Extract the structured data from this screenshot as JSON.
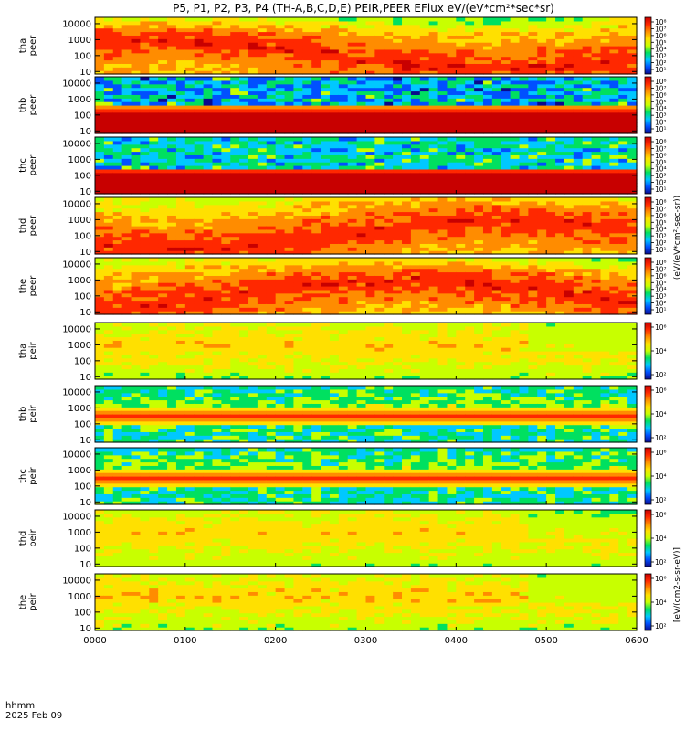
{
  "chart_data": {
    "type": "heatmap",
    "title": "P5, P1, P2, P3, P4 (TH-A,B,C,D,E) PEIR,PEER EFlux eV/(eV*cm²*sec*sr)",
    "xlabel_line1": "hhmm",
    "xlabel_line2": "2025 Feb 09",
    "x_ticks": [
      "0000",
      "0100",
      "0200",
      "0300",
      "0400",
      "0500",
      "0600"
    ],
    "xlim": [
      "00:00",
      "06:00"
    ],
    "y_scale": "log",
    "y_ticks": [
      "10",
      "100",
      "1000",
      "10000"
    ],
    "ylim_eV": [
      7,
      25000
    ],
    "colorbar_scale": "log",
    "colorbar_ticks_electron": [
      "10⁸",
      "10⁷",
      "10⁶",
      "10⁵",
      "10⁴",
      "10³",
      "10²",
      "10¹"
    ],
    "colorbar_ticks_ion": [
      "10⁶",
      "10⁴",
      "10²"
    ],
    "colorbar_units_top": "(eV/(eV*cm²-sec-sr))",
    "colorbar_units_bottom": "[eV/(cm2-s-sr-eV)]",
    "palette": [
      "#0a0a8c",
      "#0050ff",
      "#00c8ff",
      "#00e060",
      "#c8ff00",
      "#ffe000",
      "#ff8c00",
      "#ff2800",
      "#c80000"
    ],
    "panels": [
      {
        "label_line1": "tha",
        "label_line2": "peer",
        "species": "electron",
        "profile": "hot",
        "vary": 0.9
      },
      {
        "label_line1": "thb",
        "label_line2": "peer",
        "species": "electron",
        "profile": "bands",
        "vary": 0.2
      },
      {
        "label_line1": "thc",
        "label_line2": "peer",
        "species": "electron",
        "profile": "bands2",
        "vary": 0.2
      },
      {
        "label_line1": "thd",
        "label_line2": "peer",
        "species": "electron",
        "profile": "hot",
        "vary": 0.8
      },
      {
        "label_line1": "the",
        "label_line2": "peer",
        "species": "electron",
        "profile": "hot",
        "vary": 0.9
      },
      {
        "label_line1": "tha",
        "label_line2": "peir",
        "species": "ion",
        "profile": "ionwarm",
        "vary": 0.7
      },
      {
        "label_line1": "thb",
        "label_line2": "peir",
        "species": "ion",
        "profile": "ionbands",
        "vary": 0.2
      },
      {
        "label_line1": "thc",
        "label_line2": "peir",
        "species": "ion",
        "profile": "ionbands",
        "vary": 0.2
      },
      {
        "label_line1": "thd",
        "label_line2": "peir",
        "species": "ion",
        "profile": "ionwarm",
        "vary": 0.6
      },
      {
        "label_line1": "the",
        "label_line2": "peir",
        "species": "ion",
        "profile": "ionwarm",
        "vary": 0.8
      }
    ]
  }
}
